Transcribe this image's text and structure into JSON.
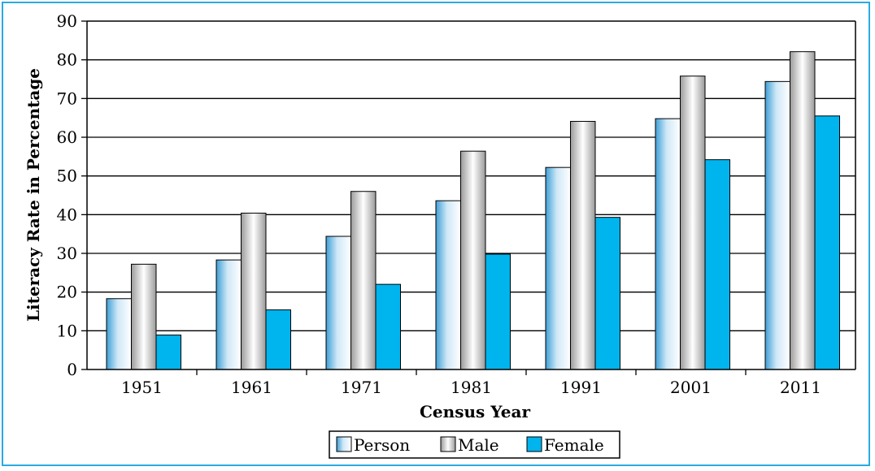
{
  "chart_data": {
    "type": "bar",
    "title": "",
    "xlabel": "Census Year",
    "ylabel": "Literacy Rate in Percentage",
    "ylim": [
      0,
      90
    ],
    "yticks": [
      0,
      10,
      20,
      30,
      40,
      50,
      60,
      70,
      80,
      90
    ],
    "categories": [
      "1951",
      "1961",
      "1971",
      "1981",
      "1991",
      "2001",
      "2011"
    ],
    "series": [
      {
        "name": "Person",
        "values": [
          18.3,
          28.3,
          34.4,
          43.6,
          52.2,
          64.8,
          74.4
        ]
      },
      {
        "name": "Male",
        "values": [
          27.2,
          40.4,
          46.0,
          56.4,
          64.1,
          75.8,
          82.1
        ]
      },
      {
        "name": "Female",
        "values": [
          8.9,
          15.4,
          22.0,
          29.8,
          39.3,
          54.2,
          65.5
        ]
      }
    ],
    "grid": true,
    "legend_position": "bottom"
  },
  "colors": {
    "frame": "#29abe2",
    "female": "#00b4ee"
  }
}
